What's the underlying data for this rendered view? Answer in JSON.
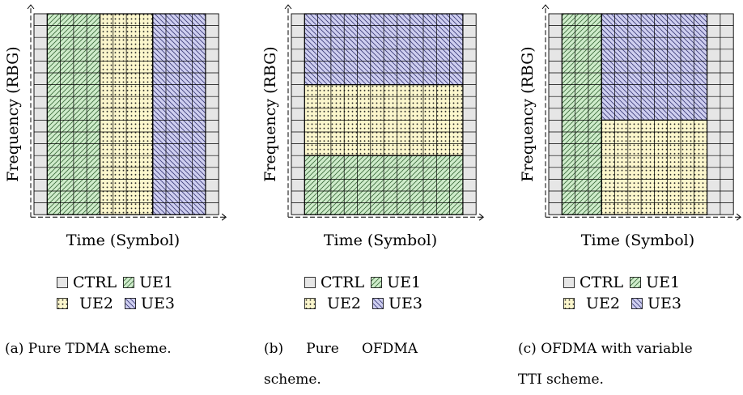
{
  "axes": {
    "ylabel": "Frequency (RBG)",
    "xlabel": "Time (Symbol)"
  },
  "legend": {
    "ctrl": "CTRL",
    "ue1": "UE1",
    "ue2": "UE2",
    "ue3": "UE3"
  },
  "colors": {
    "ctrl": "#e6e6e6",
    "ue1": "#cfeccb",
    "ue2": "#fbf6cc",
    "ue3": "#cfcff0"
  },
  "grid": {
    "symbols": 14,
    "rbgs": 17
  },
  "panels": [
    {
      "caption": "(a) Pure TDMA scheme.",
      "allocation": [
        {
          "user": "UE1",
          "symbols": [
            1,
            5
          ],
          "rbgs": [
            0,
            17
          ]
        },
        {
          "user": "UE2",
          "symbols": [
            5,
            9
          ],
          "rbgs": [
            0,
            17
          ]
        },
        {
          "user": "UE3",
          "symbols": [
            9,
            13
          ],
          "rbgs": [
            0,
            17
          ]
        }
      ]
    },
    {
      "caption_words": [
        "(b)",
        "Pure",
        "OFDMA"
      ],
      "caption_line2": "scheme.",
      "allocation": [
        {
          "user": "UE1",
          "symbols": [
            1,
            13
          ],
          "rbgs": [
            0,
            5
          ]
        },
        {
          "user": "UE2",
          "symbols": [
            1,
            13
          ],
          "rbgs": [
            5,
            11
          ]
        },
        {
          "user": "UE3",
          "symbols": [
            1,
            13
          ],
          "rbgs": [
            11,
            17
          ]
        }
      ]
    },
    {
      "caption": "(c) OFDMA with variable",
      "caption_line2": "TTI scheme.",
      "allocation": [
        {
          "user": "UE1",
          "symbols": [
            1,
            4
          ],
          "rbgs": [
            0,
            17
          ]
        },
        {
          "user": "UE2",
          "symbols": [
            4,
            12
          ],
          "rbgs": [
            0,
            8
          ]
        },
        {
          "user": "UE3",
          "symbols": [
            4,
            12
          ],
          "rbgs": [
            8,
            17
          ]
        }
      ]
    }
  ]
}
